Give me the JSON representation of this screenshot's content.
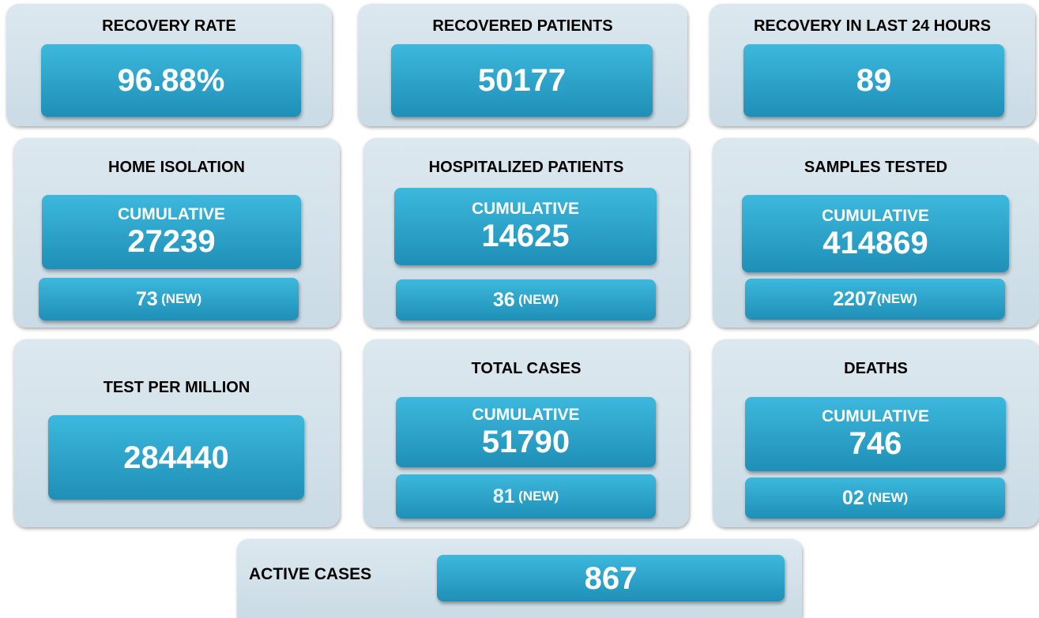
{
  "cards": [
    {
      "title": "RECOVERY RATE",
      "value": "96.88%"
    },
    {
      "title": "RECOVERED PATIENTS",
      "value": "50177"
    },
    {
      "title": "RECOVERY IN LAST 24 HOURS",
      "value": "89"
    },
    {
      "title": "HOME ISOLATION",
      "cumulative_label": "CUMULATIVE",
      "cumulative": "27239",
      "new": "73",
      "new_label": "(NEW)"
    },
    {
      "title": "HOSPITALIZED PATIENTS",
      "cumulative_label": "CUMULATIVE",
      "cumulative": "14625",
      "new": "36",
      "new_label": "(NEW)"
    },
    {
      "title": "SAMPLES TESTED",
      "cumulative_label": "CUMULATIVE",
      "cumulative": "414869",
      "new": "2207",
      "new_label": "(NEW)"
    },
    {
      "title": "TEST PER MILLION",
      "value": "284440"
    },
    {
      "title": "TOTAL CASES",
      "cumulative_label": "CUMULATIVE",
      "cumulative": "51790",
      "new": "81",
      "new_label": "(NEW)"
    },
    {
      "title": "DEATHS",
      "cumulative_label": "CUMULATIVE",
      "cumulative": "746",
      "new": "02",
      "new_label": "(NEW)"
    },
    {
      "title": "ACTIVE CASES",
      "value": "867"
    }
  ]
}
